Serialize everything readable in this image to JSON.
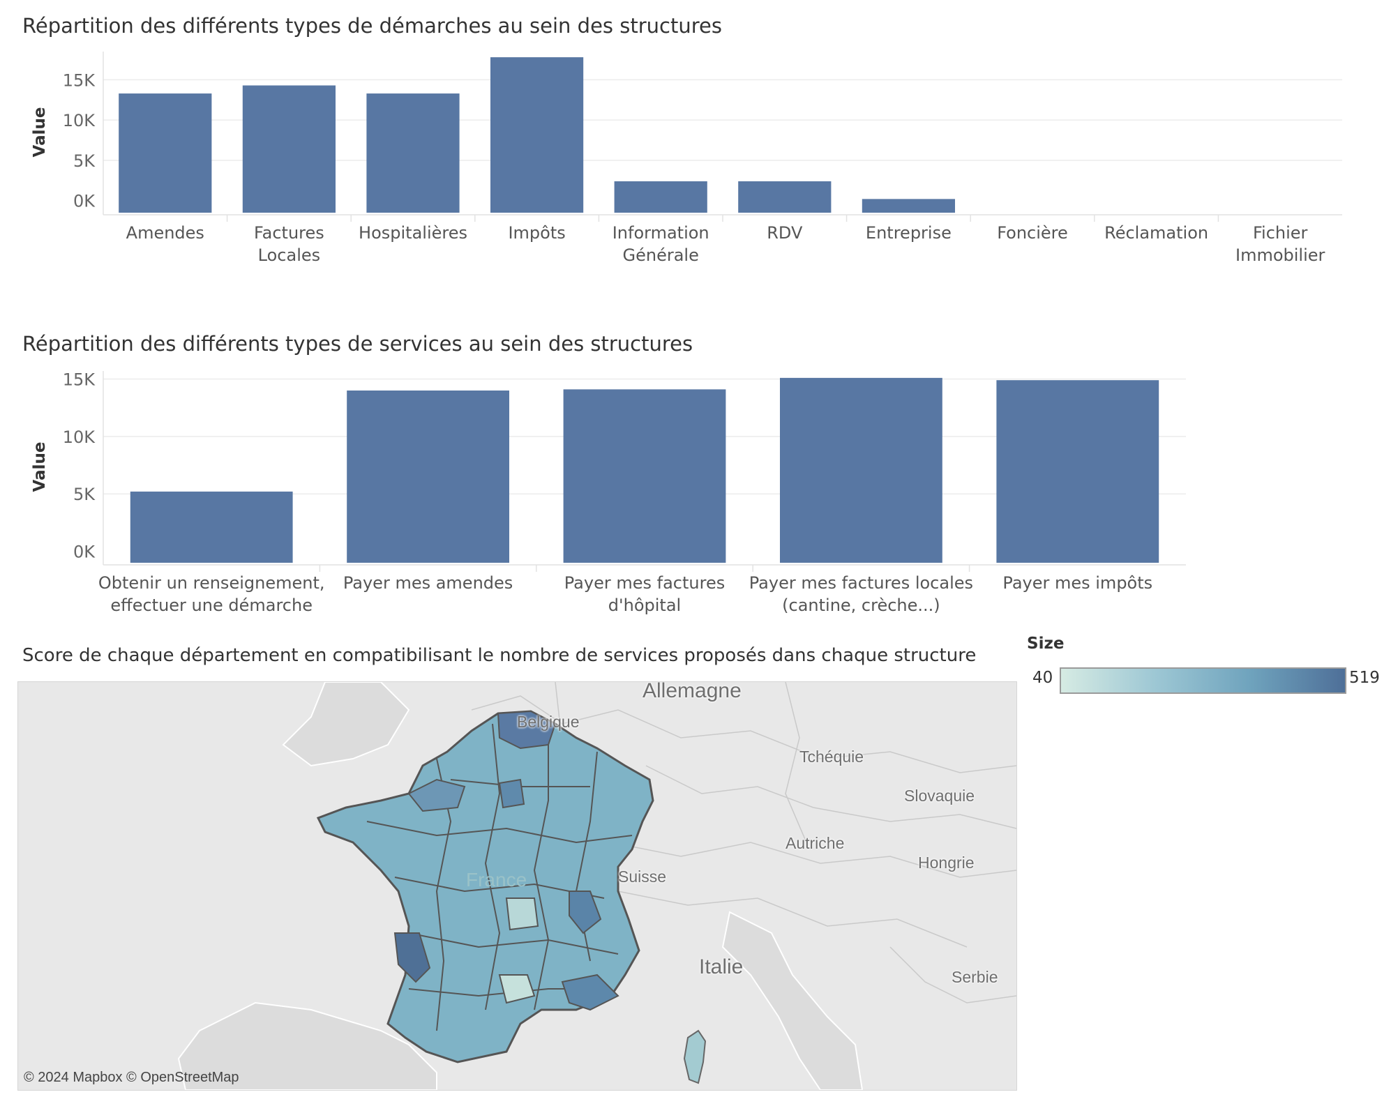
{
  "chart1": {
    "title": "Répartition des différents types de démarches au sein des structures",
    "chart_data": {
      "type": "bar",
      "title": "Répartition des différents types de démarches au sein des structures",
      "ylabel": "Value",
      "categories": [
        [
          "Amendes"
        ],
        [
          "Factures",
          "Locales"
        ],
        [
          "Hospitalières"
        ],
        [
          "Impôts"
        ],
        [
          "Information",
          "Générale"
        ],
        [
          "RDV"
        ],
        [
          "Entreprise"
        ],
        [
          "Foncière"
        ],
        [
          "Réclamation"
        ],
        [
          "Fichier",
          "Immobilier"
        ]
      ],
      "values": [
        13300,
        14300,
        13300,
        17800,
        2400,
        2400,
        200,
        0,
        0,
        0
      ],
      "ticks": [
        {
          "v": 15000,
          "label": "15K"
        },
        {
          "v": 10000,
          "label": "10K"
        },
        {
          "v": 5000,
          "label": "5K"
        },
        {
          "v": 0,
          "label": "0K"
        }
      ],
      "ylim": [
        -1500,
        18500
      ],
      "grid": true,
      "bar_color": "#5877a3"
    }
  },
  "chart2": {
    "title": "Répartition des différents types de services au sein des structures",
    "chart_data": {
      "type": "bar",
      "title": "Répartition des différents types de services au sein des structures",
      "ylabel": "Value",
      "categories": [
        [
          "Obtenir un renseignement,",
          "effectuer une démarche"
        ],
        [
          "Payer mes amendes"
        ],
        [
          "Payer mes factures",
          "d'hôpital"
        ],
        [
          "Payer mes factures locales",
          "(cantine, crèche...)"
        ],
        [
          "Payer mes impôts"
        ]
      ],
      "values": [
        5200,
        14000,
        14100,
        15100,
        14900
      ],
      "ticks": [
        {
          "v": 15000,
          "label": "15K"
        },
        {
          "v": 10000,
          "label": "10K"
        },
        {
          "v": 5000,
          "label": "5K"
        },
        {
          "v": 0,
          "label": "0K"
        }
      ],
      "ylim": [
        -1000,
        15700
      ],
      "grid": true,
      "bar_color": "#5877a3"
    }
  },
  "map": {
    "title": "Score de chaque département en compatibilisant le nombre de services proposés dans chaque structure",
    "attribution": "© 2024 Mapbox  © OpenStreetMap",
    "labels": {
      "allemagne": "Allemagne",
      "belgique": "Belgique",
      "tchequie": "Tchéquie",
      "slovaquie": "Slovaquie",
      "autriche": "Autriche",
      "hongrie": "Hongrie",
      "suisse": "Suisse",
      "france": "France",
      "italie": "Italie",
      "serbie": "Serbie"
    },
    "legend": {
      "title": "Size",
      "min": "40",
      "max": "519",
      "colors": [
        "#d6ebe3",
        "#9dc7d4",
        "#6fa3bd",
        "#4e6f98"
      ]
    }
  }
}
